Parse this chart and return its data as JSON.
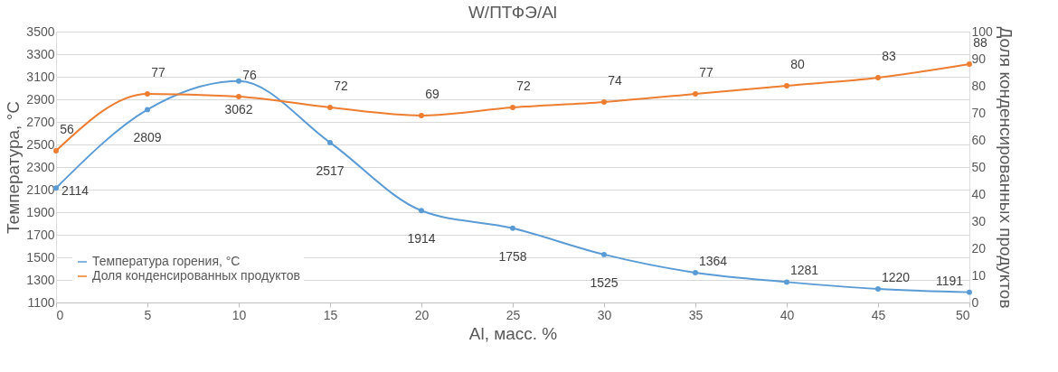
{
  "chart_data": {
    "type": "line",
    "title": "W/ПТФЭ/Al",
    "xlabel": "Al, масс. %",
    "ylabel": "Температура, °C",
    "y2label": "Доля конденсированных продуктов",
    "x": [
      0,
      5,
      10,
      15,
      20,
      25,
      30,
      35,
      40,
      45,
      50
    ],
    "series": [
      {
        "name": "Температура горения, °C",
        "color": "#5b9bd5",
        "values": [
          2114,
          2809,
          3062,
          2517,
          1914,
          1758,
          1525,
          1364,
          1281,
          1220,
          1191
        ]
      },
      {
        "name": "Доля конденсированных продуктов",
        "color": "#ed7d31",
        "axis": "y2",
        "values": [
          56,
          77,
          76,
          72,
          69,
          72,
          74,
          77,
          80,
          83,
          88
        ]
      }
    ],
    "xlim": [
      0,
      50
    ],
    "xticks": [
      0,
      5,
      10,
      15,
      20,
      25,
      30,
      35,
      40,
      45,
      50
    ],
    "ylim": [
      1100,
      3500
    ],
    "yticks": [
      1100,
      1300,
      1500,
      1700,
      1900,
      2100,
      2300,
      2500,
      2700,
      2900,
      3100,
      3300,
      3500
    ],
    "y2lim": [
      0,
      100
    ],
    "y2ticks": [
      0,
      10,
      20,
      30,
      40,
      50,
      60,
      70,
      80,
      90,
      100
    ],
    "grid": "y",
    "legend": "bottom left",
    "marker": "circle",
    "line_style": "solid",
    "data_labels": true
  }
}
